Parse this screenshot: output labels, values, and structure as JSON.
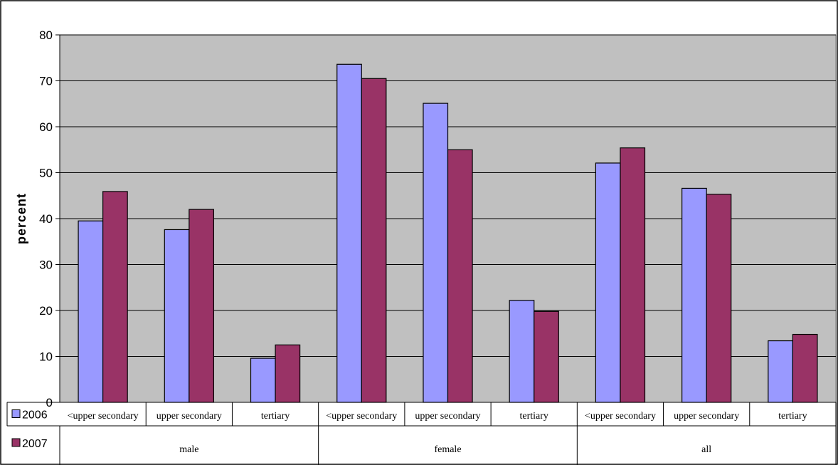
{
  "chart_data": {
    "type": "bar",
    "ylabel": "percent",
    "ylim": [
      0,
      80
    ],
    "yticks": [
      0,
      10,
      20,
      30,
      40,
      50,
      60,
      70,
      80
    ],
    "grid": true,
    "legend": "bottom-left, in data table",
    "groups": [
      "male",
      "female",
      "all"
    ],
    "categories": [
      "<upper secondary",
      "upper secondary",
      "tertiary",
      "<upper secondary",
      "upper secondary",
      "tertiary",
      "<upper secondary",
      "upper secondary",
      "tertiary"
    ],
    "series": [
      {
        "name": "2006",
        "color": "#9999ff",
        "values": [
          39.5,
          37.6,
          9.6,
          73.6,
          65.1,
          22.2,
          52.1,
          46.6,
          13.4
        ]
      },
      {
        "name": "2007",
        "color": "#993366",
        "values": [
          45.9,
          42.0,
          12.5,
          70.5,
          55.0,
          19.8,
          55.4,
          45.3,
          14.8
        ]
      }
    ],
    "plot_background": "#c0c0c0"
  }
}
